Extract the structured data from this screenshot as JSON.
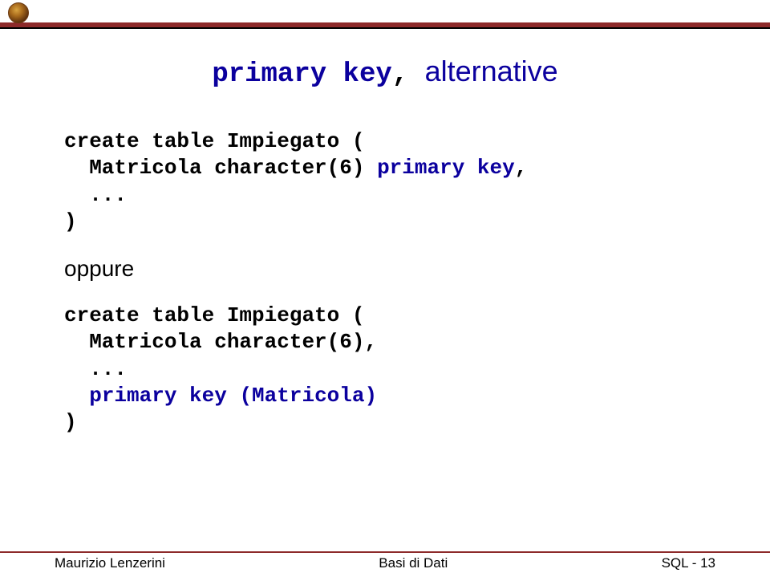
{
  "colors": {
    "accent": "#8d2a2a",
    "keyword": "#0b009e",
    "text": "#000000",
    "background": "#ffffff"
  },
  "title": {
    "part1": "primary key",
    "comma": ",",
    "part2": "alternative"
  },
  "code_block_1": {
    "line1": "create table Impiegato (",
    "line2_pre": "  Matricola character(6) ",
    "line2_kw": "primary key",
    "line2_post": ",",
    "line3": "  ...",
    "line4": ")"
  },
  "middle_word": "oppure",
  "code_block_2": {
    "line1": "create table Impiegato (",
    "line2": "  Matricola character(6),",
    "line3": "  ...",
    "line4_pre": "  ",
    "line4_kw": "primary key (Matricola)",
    "line5": ")"
  },
  "footer": {
    "left": "Maurizio Lenzerini",
    "center": "Basi di Dati",
    "right": "SQL - 13"
  }
}
